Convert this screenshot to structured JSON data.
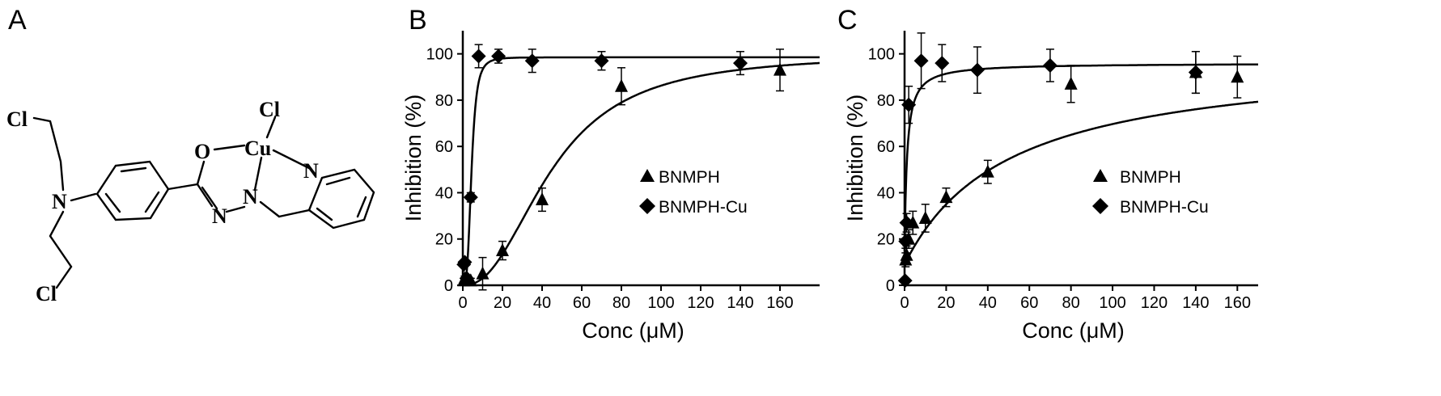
{
  "panels": {
    "a": "A",
    "b": "B",
    "c": "C"
  },
  "molecule": {
    "atoms": {
      "cl_top_left": "Cl",
      "cl_bottom_left": "Cl",
      "n_amine": "N",
      "o": "O",
      "cu": "Cu",
      "cl_cu": "Cl",
      "n_imine1": "N",
      "n_imine2": "N",
      "n_pyridine": "N"
    }
  },
  "chart_data": [
    {
      "type": "scatter",
      "panel": "B",
      "xlabel": "Conc (μM)",
      "ylabel": "Inhibition (%)",
      "xlim": [
        0,
        180
      ],
      "ylim": [
        0,
        110
      ],
      "xticks": [
        0,
        20,
        40,
        60,
        80,
        100,
        120,
        140,
        160
      ],
      "yticks": [
        0,
        20,
        40,
        60,
        80,
        100
      ],
      "legend_position": "middle-right",
      "series": [
        {
          "name": "BNMPH",
          "marker": "triangle",
          "x": [
            0.5,
            1,
            2,
            4,
            10,
            20,
            40,
            80,
            160
          ],
          "y": [
            2,
            3,
            3,
            2,
            5,
            15,
            37,
            86,
            93
          ],
          "err": [
            1,
            1,
            1,
            1,
            7,
            4,
            5,
            8,
            9
          ],
          "curve": {
            "model": "hill",
            "bottom": 0,
            "top": 100,
            "ec50": 45,
            "hill": 2.3
          }
        },
        {
          "name": "BNMPH-Cu",
          "marker": "diamond",
          "x": [
            0.5,
            1,
            2,
            4,
            8,
            18,
            35,
            70,
            140
          ],
          "y": [
            9,
            10,
            3,
            38,
            99,
            99,
            97,
            97,
            96
          ],
          "err": [
            1,
            1,
            1,
            2,
            5,
            3,
            5,
            4,
            5
          ],
          "curve": {
            "model": "hill",
            "bottom": 0,
            "top": 98.5,
            "ec50": 4.4,
            "hill": 3.5
          }
        }
      ]
    },
    {
      "type": "scatter",
      "panel": "C",
      "xlabel": "Conc (μM)",
      "ylabel": "Inhibition (%)",
      "xlim": [
        0,
        170
      ],
      "ylim": [
        0,
        110
      ],
      "xticks": [
        0,
        20,
        40,
        60,
        80,
        100,
        120,
        140,
        160
      ],
      "yticks": [
        0,
        20,
        40,
        60,
        80,
        100
      ],
      "legend_position": "middle-right",
      "series": [
        {
          "name": "BNMPH",
          "marker": "triangle",
          "x": [
            0.5,
            1,
            2,
            4,
            10,
            20,
            40,
            80,
            140,
            160
          ],
          "y": [
            11,
            13,
            20,
            27,
            29,
            38,
            49,
            87,
            92,
            90
          ],
          "err": [
            3,
            4,
            4,
            5,
            6,
            4,
            5,
            8,
            9,
            9
          ],
          "curve": {
            "model": "hyperbolic",
            "base": 9,
            "top": 100,
            "k": 50
          }
        },
        {
          "name": "BNMPH-Cu",
          "marker": "diamond",
          "x": [
            0.25,
            0.5,
            1,
            2,
            8,
            18,
            35,
            70,
            140
          ],
          "y": [
            2,
            19,
            27,
            78,
            97,
            96,
            93,
            95,
            92
          ],
          "err": [
            1,
            3,
            4,
            8,
            12,
            8,
            10,
            7,
            9
          ],
          "curve": {
            "model": "hyperbolic",
            "base": 15,
            "top": 96,
            "k": 1.2
          }
        }
      ]
    }
  ]
}
